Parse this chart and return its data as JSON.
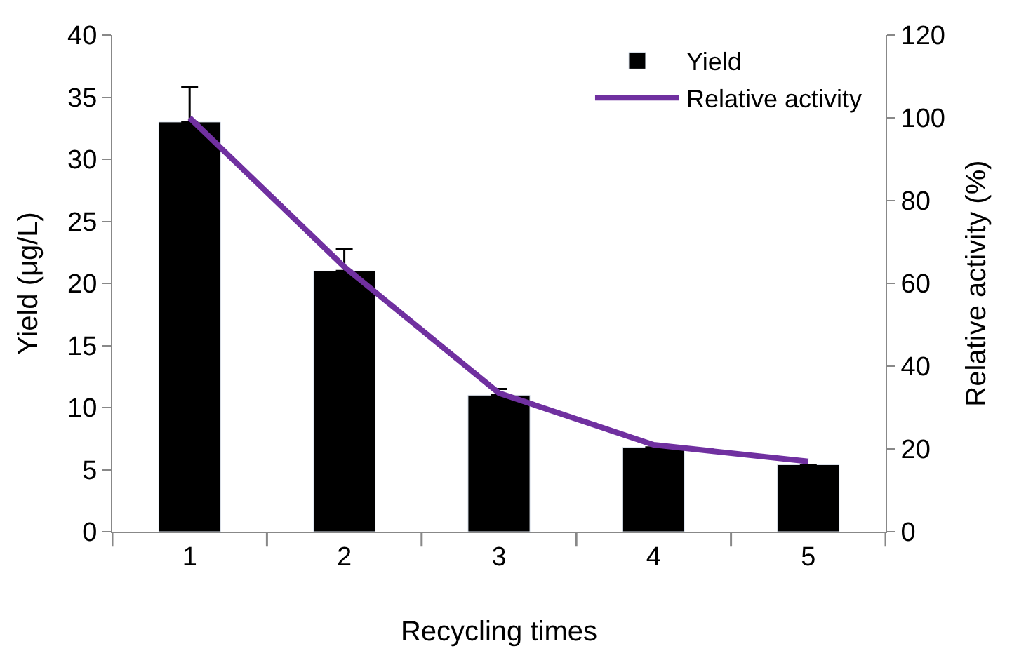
{
  "chart_data": {
    "type": "bar",
    "xlabel": "Recycling times",
    "ylabel": "Yield (μg/L)",
    "y2label": "Relative activity (%)",
    "categories": [
      "1",
      "2",
      "3",
      "4",
      "5"
    ],
    "series": [
      {
        "name": "Yield",
        "color": "#000000",
        "values": [
          33,
          21,
          11,
          6.8,
          5.4
        ],
        "errors": [
          [
            33,
            35.8
          ],
          [
            21,
            22.8
          ],
          [
            11,
            11.5
          ],
          null,
          null
        ]
      },
      {
        "name": "Relative activity",
        "type": "line",
        "axis": "y2",
        "color": "#7030a0",
        "values": [
          100,
          64,
          33.5,
          21,
          17
        ]
      }
    ],
    "ylim": [
      0,
      40
    ],
    "yticks": [
      0,
      5,
      10,
      15,
      20,
      25,
      30,
      35,
      40
    ],
    "y2lim": [
      0,
      120
    ],
    "y2ticks": [
      0,
      20,
      40,
      60,
      80,
      100,
      120
    ],
    "legend": "top right",
    "marker": "none",
    "line_style": "solid"
  }
}
